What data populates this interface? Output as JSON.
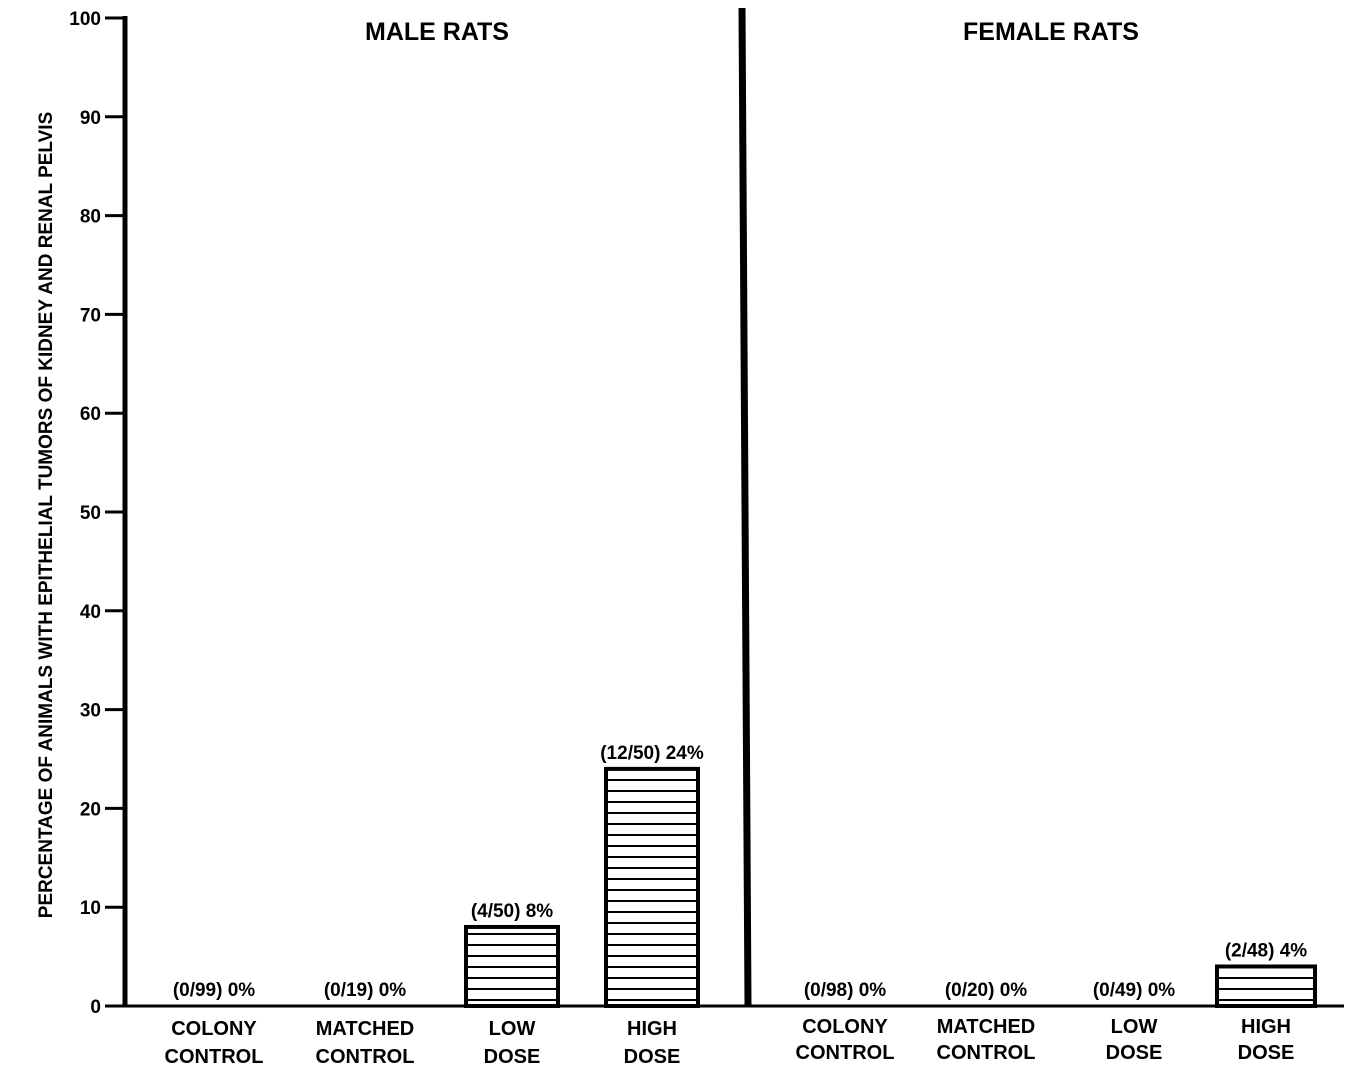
{
  "chart_data": {
    "type": "bar",
    "ylabel": "PERCENTAGE OF ANIMALS WITH EPITHELIAL TUMORS OF KIDNEY AND RENAL PELVIS",
    "ylim": [
      0,
      100
    ],
    "yticks": [
      "0",
      "10",
      "20",
      "30",
      "40",
      "50",
      "60",
      "70",
      "80",
      "90",
      "100"
    ],
    "grid": false,
    "bar_pattern": "horizontal-hatch",
    "colors": {
      "ink": "#000000",
      "background": "#ffffff"
    },
    "panels": [
      {
        "title": "MALE RATS",
        "categories": [
          {
            "line1": "COLONY",
            "line2": "CONTROL"
          },
          {
            "line1": "MATCHED",
            "line2": "CONTROL"
          },
          {
            "line1": "LOW",
            "line2": "DOSE"
          },
          {
            "line1": "HIGH",
            "line2": "DOSE"
          }
        ],
        "values": [
          0,
          0,
          8,
          24
        ],
        "data_labels": [
          "(0/99)  0%",
          "(0/19)  0%",
          "(4/50)  8%",
          "(12/50) 24%"
        ]
      },
      {
        "title": "FEMALE RATS",
        "categories": [
          {
            "line1": "COLONY",
            "line2": "CONTROL"
          },
          {
            "line1": "MATCHED",
            "line2": "CONTROL"
          },
          {
            "line1": "LOW",
            "line2": "DOSE"
          },
          {
            "line1": "HIGH",
            "line2": "DOSE"
          }
        ],
        "values": [
          0,
          0,
          0,
          4
        ],
        "data_labels": [
          "(0/98)  0%",
          "(0/20) 0%",
          "(0/49)  0%",
          "(2/48) 4%"
        ]
      }
    ]
  }
}
